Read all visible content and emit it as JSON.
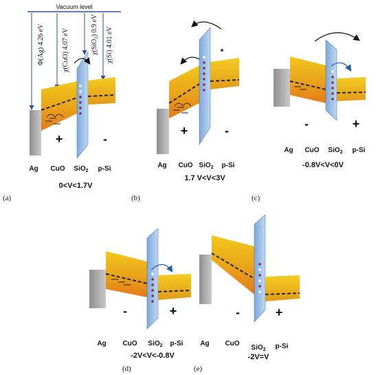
{
  "colors": {
    "band_top": "#f2c21a",
    "band_mid": "#e9a21a",
    "band_bottom": "#e07a18",
    "metal": "#a9a9a9",
    "oxide": "#8ab6e4",
    "oxide_edge": "#3b6fb0",
    "psi": "#e9b21c",
    "vacuum": "#2b4e9a",
    "arrow": "#1f5fa8"
  },
  "panel_a": {
    "vacuum_label": "Vacuum level",
    "phi_ag": "Φ(Ag) 4.26 eV",
    "chi_cuo": "χ(CuO) 4.07 eV",
    "chi_sio2": "χ(SiO",
    "chi_sio2_sub": "2",
    "chi_sio2_tail": ") 0.9 eV",
    "chi_si": "χ(Si) 4.01 eV",
    "plus": "+",
    "minus": "-",
    "label_ag": "Ag",
    "label_cuo": "CuO",
    "label_sio2": "SiO",
    "label_sio2_sub": "2",
    "label_psi": "p-Si",
    "condition": "0<V<1.7V",
    "letter": "(a)"
  },
  "panel_b": {
    "plus": "+",
    "minus": "-",
    "label_ag": "Ag",
    "label_cuo": "CuO",
    "label_sio2": "SiO",
    "label_sio2_sub": "2",
    "label_psi": "p-Si",
    "condition": "1.7 V<V<3V",
    "letter": "(b)"
  },
  "panel_c": {
    "plus": "+",
    "minus": "-",
    "label_ag": "Ag",
    "label_cuo": "CuO",
    "label_sio2": "SiO",
    "label_sio2_sub": "2",
    "label_psi": "p-Si",
    "condition": "-0.8V<V<0V",
    "letter": "(c)"
  },
  "panel_d": {
    "plus": "+",
    "minus": "-",
    "label_ag": "Ag",
    "label_cuo": "CuO",
    "label_sio2": "SiO",
    "label_sio2_sub": "2",
    "label_psi": "p-Si",
    "condition": "-2V<V<-0.8V",
    "letter": "(d)"
  },
  "panel_e": {
    "plus": "+",
    "minus": "-",
    "label_ag": "Ag",
    "label_cuo": "CuO",
    "label_sio2": "SiO",
    "label_sio2_sub": "2",
    "label_psi": "p-Si",
    "condition": "-2V=V",
    "letter": "(e)"
  }
}
